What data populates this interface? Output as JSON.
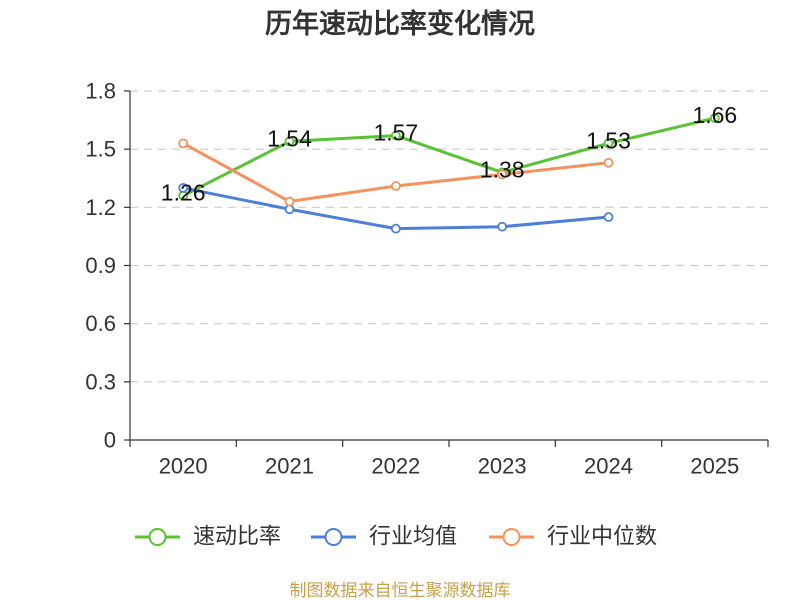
{
  "chart_data": {
    "type": "line",
    "title": "历年速动比率变化情况",
    "categories": [
      "2020",
      "2021",
      "2022",
      "2023",
      "2024",
      "2025"
    ],
    "xlabel": "",
    "ylabel": "",
    "ylim": [
      0,
      1.8
    ],
    "yticks": [
      0,
      0.3,
      0.6,
      0.9,
      1.2,
      1.5,
      1.8
    ],
    "ytick_labels": [
      "0",
      "0.3",
      "0.6",
      "0.9",
      "1.2",
      "1.5",
      "1.8"
    ],
    "grid": true,
    "legend_position": "bottom",
    "series": [
      {
        "name": "速动比率",
        "color": "#5bc236",
        "values": [
          1.26,
          1.54,
          1.57,
          1.38,
          1.53,
          1.66
        ],
        "data_labels": [
          "1.26",
          "1.54",
          "1.57",
          "1.38",
          "1.53",
          "1.66"
        ]
      },
      {
        "name": "行业均值",
        "color": "#4d7fd8",
        "values": [
          1.3,
          1.19,
          1.09,
          1.1,
          1.15,
          null
        ]
      },
      {
        "name": "行业中位数",
        "color": "#f5925e",
        "values": [
          1.53,
          1.23,
          1.31,
          1.37,
          1.43,
          null
        ]
      }
    ]
  },
  "footer": {
    "source": "制图数据来自恒生聚源数据库"
  }
}
